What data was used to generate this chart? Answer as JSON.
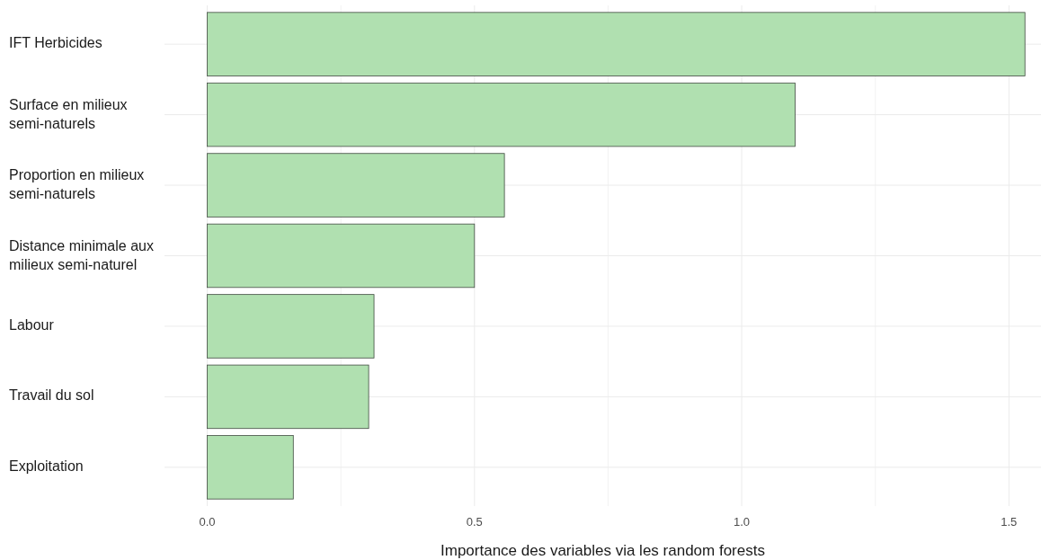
{
  "chart_data": {
    "type": "bar",
    "orientation": "horizontal",
    "xlabel": "Importance des variables via les random forests",
    "categories": [
      "IFT Herbicides",
      "Surface en milieux semi-naturels",
      "Proportion en milieux semi-naturels",
      "Distance minimale aux milieux semi-naturel",
      "Labour",
      "Travail du sol",
      "Exploitation"
    ],
    "values": [
      1.53,
      1.1,
      0.556,
      0.5,
      0.312,
      0.302,
      0.161
    ],
    "color": "#b0e0b0",
    "xlim": [
      -0.08,
      1.56
    ],
    "xticks": [
      {
        "value": 0,
        "label": "0.0"
      },
      {
        "value": 0.25,
        "label": null
      },
      {
        "value": 0.5,
        "label": "0.5"
      },
      {
        "value": 0.75,
        "label": null
      },
      {
        "value": 1,
        "label": "1.0"
      },
      {
        "value": 1.25,
        "label": null
      },
      {
        "value": 1.5,
        "label": "1.5"
      }
    ],
    "grid": true
  }
}
